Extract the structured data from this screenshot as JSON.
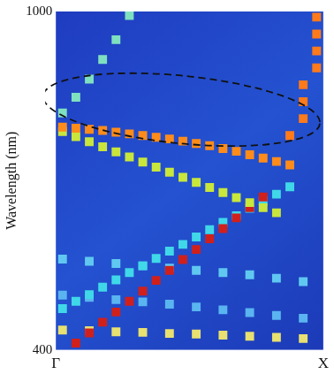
{
  "chart_data": {
    "type": "scatter",
    "y_label": "Wavelength (nm)",
    "xlim": [
      0,
      1
    ],
    "xticks": [
      {
        "value": 0,
        "label": "Γ"
      },
      {
        "value": 1,
        "label": "X"
      }
    ],
    "ylim": [
      400,
      1000
    ],
    "yticks": [
      400,
      1000
    ],
    "grid": false,
    "marker": "square",
    "series": [
      {
        "color": "#7fe0c0",
        "x": [
          0.025,
          0.075,
          0.125,
          0.175,
          0.225,
          0.275
        ],
        "values": [
          820,
          848,
          880,
          915,
          950,
          993
        ]
      },
      {
        "color": "#ff8c1a",
        "x": [
          0.025,
          0.075,
          0.125,
          0.175,
          0.225,
          0.275,
          0.325,
          0.375,
          0.425,
          0.475,
          0.525,
          0.575,
          0.625,
          0.675,
          0.725,
          0.775,
          0.825,
          0.875
        ],
        "values": [
          795,
          793,
          791,
          789,
          786,
          783,
          780,
          777,
          774,
          770,
          766,
          762,
          757,
          752,
          746,
          740,
          734,
          728
        ]
      },
      {
        "color": "#c8e63c",
        "x": [
          0.025,
          0.075,
          0.125,
          0.175,
          0.225,
          0.275,
          0.325,
          0.375,
          0.425,
          0.475,
          0.525,
          0.575,
          0.625,
          0.675,
          0.725,
          0.775,
          0.825
        ],
        "values": [
          787,
          778,
          769,
          760,
          751,
          742,
          733,
          724,
          715,
          706,
          697,
          688,
          679,
          670,
          661,
          652,
          643
        ]
      },
      {
        "color": "#d0201c",
        "x": [
          0.075,
          0.125,
          0.175,
          0.225,
          0.275,
          0.325,
          0.375,
          0.425,
          0.475,
          0.525,
          0.575,
          0.625,
          0.675,
          0.725,
          0.775
        ],
        "values": [
          412,
          430,
          449,
          467,
          486,
          504,
          523,
          541,
          560,
          578,
          597,
          615,
          634,
          652,
          671
        ]
      },
      {
        "color": "#40d8e8",
        "x": [
          0.025,
          0.075,
          0.125,
          0.175,
          0.225,
          0.275,
          0.325,
          0.375,
          0.425,
          0.475,
          0.525,
          0.575,
          0.625,
          0.675,
          0.725,
          0.775,
          0.825,
          0.875
        ],
        "values": [
          473,
          486,
          498,
          511,
          524,
          537,
          549,
          562,
          575,
          587,
          600,
          613,
          626,
          638,
          651,
          664,
          676,
          689
        ]
      },
      {
        "color": "#60c8f0",
        "x": [
          0.025,
          0.125,
          0.225,
          0.325,
          0.425,
          0.525,
          0.625,
          0.725,
          0.825,
          0.925
        ],
        "values": [
          561,
          557,
          553,
          549,
          545,
          541,
          537,
          533,
          527,
          521
        ]
      },
      {
        "color": "#5ab4f0",
        "x": [
          0.025,
          0.125,
          0.225,
          0.325,
          0.425,
          0.525,
          0.625,
          0.725,
          0.825,
          0.925
        ],
        "values": [
          497,
          493,
          489,
          485,
          481,
          476,
          471,
          466,
          461,
          456
        ]
      },
      {
        "color": "#e8e070",
        "x": [
          0.025,
          0.125,
          0.225,
          0.325,
          0.425,
          0.525,
          0.625,
          0.725,
          0.825,
          0.925
        ],
        "values": [
          435,
          434,
          432,
          431,
          429,
          428,
          426,
          424,
          422,
          420
        ]
      },
      {
        "color": "#ff7a1a",
        "x": [
          0.975,
          0.975,
          0.975,
          0.975,
          0.925,
          0.925,
          0.925,
          0.875
        ],
        "values": [
          990,
          960,
          930,
          900,
          870,
          840,
          810,
          780
        ]
      }
    ]
  }
}
